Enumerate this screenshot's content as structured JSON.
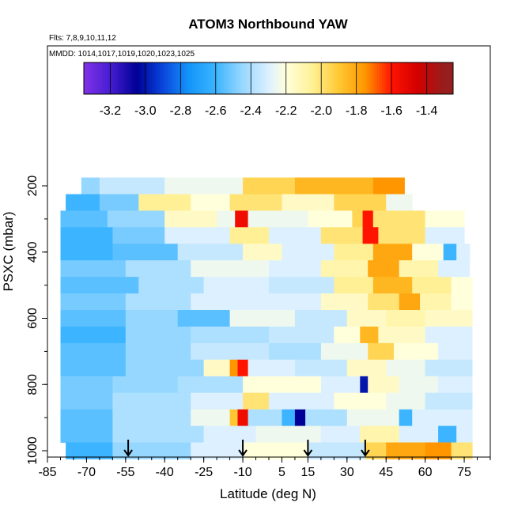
{
  "chart_data": {
    "type": "heatmap",
    "title": "ATOM3 Northbound YAW",
    "subtitle_flights": "Flts: 7,8,9,10,11,12",
    "subtitle_dates": "MMDD: 1014,1017,1019,1020,1023,1025",
    "xlabel": "Latitude (deg N)",
    "ylabel": "PSXC (mbar)",
    "xlim": [
      -85,
      85
    ],
    "ylim": [
      1020,
      100
    ],
    "x_ticks": [
      "-85",
      "-70",
      "-55",
      "-40",
      "-25",
      "-10",
      "5",
      "15",
      "30",
      "45",
      "60",
      "75"
    ],
    "y_ticks": [
      "200",
      "400",
      "600",
      "800",
      "1000"
    ],
    "colorbar": {
      "ticks": [
        "-3.2",
        "-3.0",
        "-2.8",
        "-2.6",
        "-2.4",
        "-2.2",
        "-2.0",
        "-1.8",
        "-1.6",
        "-1.4"
      ],
      "range": [
        -3.35,
        -1.25
      ]
    },
    "arrows_lat": [
      -54,
      -10,
      15,
      37
    ],
    "rows": [
      {
        "p": 200,
        "lat": [
          -72,
          52
        ],
        "segments": [
          [
            -72,
            -2.45
          ],
          [
            -65,
            -2.35
          ],
          [
            -40,
            -2.25
          ],
          [
            -10,
            -1.95
          ],
          [
            10,
            -1.85
          ],
          [
            40,
            -1.75
          ]
        ]
      },
      {
        "p": 250,
        "lat": [
          -78,
          55
        ],
        "segments": [
          [
            -78,
            -2.6
          ],
          [
            -65,
            -2.5
          ],
          [
            -50,
            -2.05
          ],
          [
            -30,
            -2.2
          ],
          [
            -15,
            -2.0
          ],
          [
            5,
            -2.15
          ],
          [
            25,
            -1.95
          ],
          [
            45,
            -2.25
          ]
        ]
      },
      {
        "p": 300,
        "lat": [
          -80,
          75
        ],
        "segments": [
          [
            -80,
            -2.55
          ],
          [
            -62,
            -2.45
          ],
          [
            -40,
            -2.15
          ],
          [
            -20,
            -2.25
          ],
          [
            -13,
            -1.55
          ],
          [
            -8,
            -2.25
          ],
          [
            15,
            -2.2
          ],
          [
            32,
            -1.95
          ],
          [
            36,
            -1.6
          ],
          [
            40,
            -2.0
          ],
          [
            60,
            -2.2
          ]
        ]
      },
      {
        "p": 350,
        "lat": [
          -80,
          75
        ],
        "segments": [
          [
            -80,
            -2.6
          ],
          [
            -60,
            -2.5
          ],
          [
            -40,
            -2.3
          ],
          [
            -15,
            -2.05
          ],
          [
            0,
            -2.3
          ],
          [
            20,
            -2.0
          ],
          [
            36,
            -1.6
          ],
          [
            42,
            -2.0
          ],
          [
            60,
            -2.3
          ]
        ]
      },
      {
        "p": 400,
        "lat": [
          -80,
          77
        ],
        "segments": [
          [
            -80,
            -2.6
          ],
          [
            -60,
            -2.55
          ],
          [
            -35,
            -2.35
          ],
          [
            -10,
            -2.15
          ],
          [
            5,
            -2.3
          ],
          [
            25,
            -2.05
          ],
          [
            40,
            -1.8
          ],
          [
            55,
            -2.2
          ],
          [
            67,
            -2.6
          ],
          [
            72,
            -2.3
          ]
        ]
      },
      {
        "p": 450,
        "lat": [
          -80,
          77
        ],
        "segments": [
          [
            -80,
            -2.5
          ],
          [
            -55,
            -2.4
          ],
          [
            -30,
            -2.25
          ],
          [
            0,
            -2.3
          ],
          [
            20,
            -2.1
          ],
          [
            38,
            -1.8
          ],
          [
            50,
            -2.1
          ],
          [
            65,
            -2.3
          ]
        ]
      },
      {
        "p": 500,
        "lat": [
          -80,
          78
        ],
        "segments": [
          [
            -80,
            -2.55
          ],
          [
            -50,
            -2.4
          ],
          [
            -25,
            -2.3
          ],
          [
            0,
            -2.35
          ],
          [
            25,
            -2.05
          ],
          [
            40,
            -1.85
          ],
          [
            55,
            -2.05
          ],
          [
            70,
            -2.2
          ]
        ]
      },
      {
        "p": 550,
        "lat": [
          -80,
          78
        ],
        "segments": [
          [
            -80,
            -2.5
          ],
          [
            -55,
            -2.4
          ],
          [
            -30,
            -2.3
          ],
          [
            0,
            -2.3
          ],
          [
            20,
            -2.15
          ],
          [
            38,
            -2.0
          ],
          [
            50,
            -1.8
          ],
          [
            58,
            -2.1
          ],
          [
            70,
            -2.2
          ]
        ]
      },
      {
        "p": 600,
        "lat": [
          -80,
          78
        ],
        "segments": [
          [
            -80,
            -2.55
          ],
          [
            -55,
            -2.45
          ],
          [
            -35,
            -2.55
          ],
          [
            -15,
            -2.25
          ],
          [
            10,
            -2.35
          ],
          [
            30,
            -2.15
          ],
          [
            45,
            -2.1
          ],
          [
            60,
            -2.15
          ]
        ]
      },
      {
        "p": 650,
        "lat": [
          -80,
          78
        ],
        "segments": [
          [
            -80,
            -2.6
          ],
          [
            -55,
            -2.45
          ],
          [
            -30,
            -2.4
          ],
          [
            0,
            -2.35
          ],
          [
            25,
            -2.2
          ],
          [
            35,
            -1.85
          ],
          [
            42,
            -2.15
          ],
          [
            60,
            -2.3
          ]
        ]
      },
      {
        "p": 700,
        "lat": [
          -80,
          78
        ],
        "segments": [
          [
            -80,
            -2.55
          ],
          [
            -55,
            -2.45
          ],
          [
            -30,
            -2.35
          ],
          [
            0,
            -2.4
          ],
          [
            20,
            -2.25
          ],
          [
            38,
            -1.95
          ],
          [
            48,
            -2.2
          ],
          [
            65,
            -2.3
          ]
        ]
      },
      {
        "p": 750,
        "lat": [
          -80,
          78
        ],
        "segments": [
          [
            -80,
            -2.55
          ],
          [
            -55,
            -2.45
          ],
          [
            -25,
            -2.15
          ],
          [
            -15,
            -1.75
          ],
          [
            -12,
            -1.6
          ],
          [
            -8,
            -2.3
          ],
          [
            10,
            -2.35
          ],
          [
            30,
            -2.15
          ],
          [
            45,
            -2.25
          ],
          [
            60,
            -2.35
          ]
        ]
      },
      {
        "p": 800,
        "lat": [
          -80,
          78
        ],
        "segments": [
          [
            -80,
            -2.5
          ],
          [
            -60,
            -2.45
          ],
          [
            -35,
            -2.4
          ],
          [
            -10,
            -2.2
          ],
          [
            20,
            -2.3
          ],
          [
            35,
            -3.0
          ],
          [
            38,
            -2.15
          ],
          [
            50,
            -2.25
          ],
          [
            65,
            -2.3
          ]
        ]
      },
      {
        "p": 850,
        "lat": [
          -80,
          78
        ],
        "segments": [
          [
            -80,
            -2.5
          ],
          [
            -60,
            -2.4
          ],
          [
            -30,
            -2.3
          ],
          [
            -10,
            -2.0
          ],
          [
            0,
            -2.3
          ],
          [
            25,
            -2.2
          ],
          [
            45,
            -2.25
          ],
          [
            60,
            -2.35
          ]
        ]
      },
      {
        "p": 900,
        "lat": [
          -80,
          78
        ],
        "segments": [
          [
            -80,
            -2.55
          ],
          [
            -60,
            -2.4
          ],
          [
            -30,
            -2.25
          ],
          [
            -15,
            -1.9
          ],
          [
            -12,
            -1.55
          ],
          [
            -8,
            -2.4
          ],
          [
            5,
            -2.6
          ],
          [
            10,
            -3.05
          ],
          [
            14,
            -2.4
          ],
          [
            30,
            -2.25
          ],
          [
            50,
            -2.6
          ],
          [
            55,
            -2.3
          ]
        ]
      },
      {
        "p": 950,
        "lat": [
          -80,
          78
        ],
        "segments": [
          [
            -80,
            -2.55
          ],
          [
            -60,
            -2.4
          ],
          [
            -25,
            -2.3
          ],
          [
            -5,
            -2.25
          ],
          [
            20,
            -2.3
          ],
          [
            35,
            -2.1
          ],
          [
            50,
            -2.3
          ],
          [
            65,
            -2.6
          ],
          [
            72,
            -2.3
          ]
        ]
      },
      {
        "p": 1000,
        "lat": [
          -78,
          78
        ],
        "segments": [
          [
            -78,
            -2.6
          ],
          [
            -60,
            -2.45
          ],
          [
            -30,
            -2.3
          ],
          [
            -10,
            -2.2
          ],
          [
            15,
            -2.35
          ],
          [
            37,
            -1.95
          ],
          [
            45,
            -1.8
          ],
          [
            60,
            -1.75
          ],
          [
            70,
            -2.0
          ]
        ]
      }
    ]
  }
}
